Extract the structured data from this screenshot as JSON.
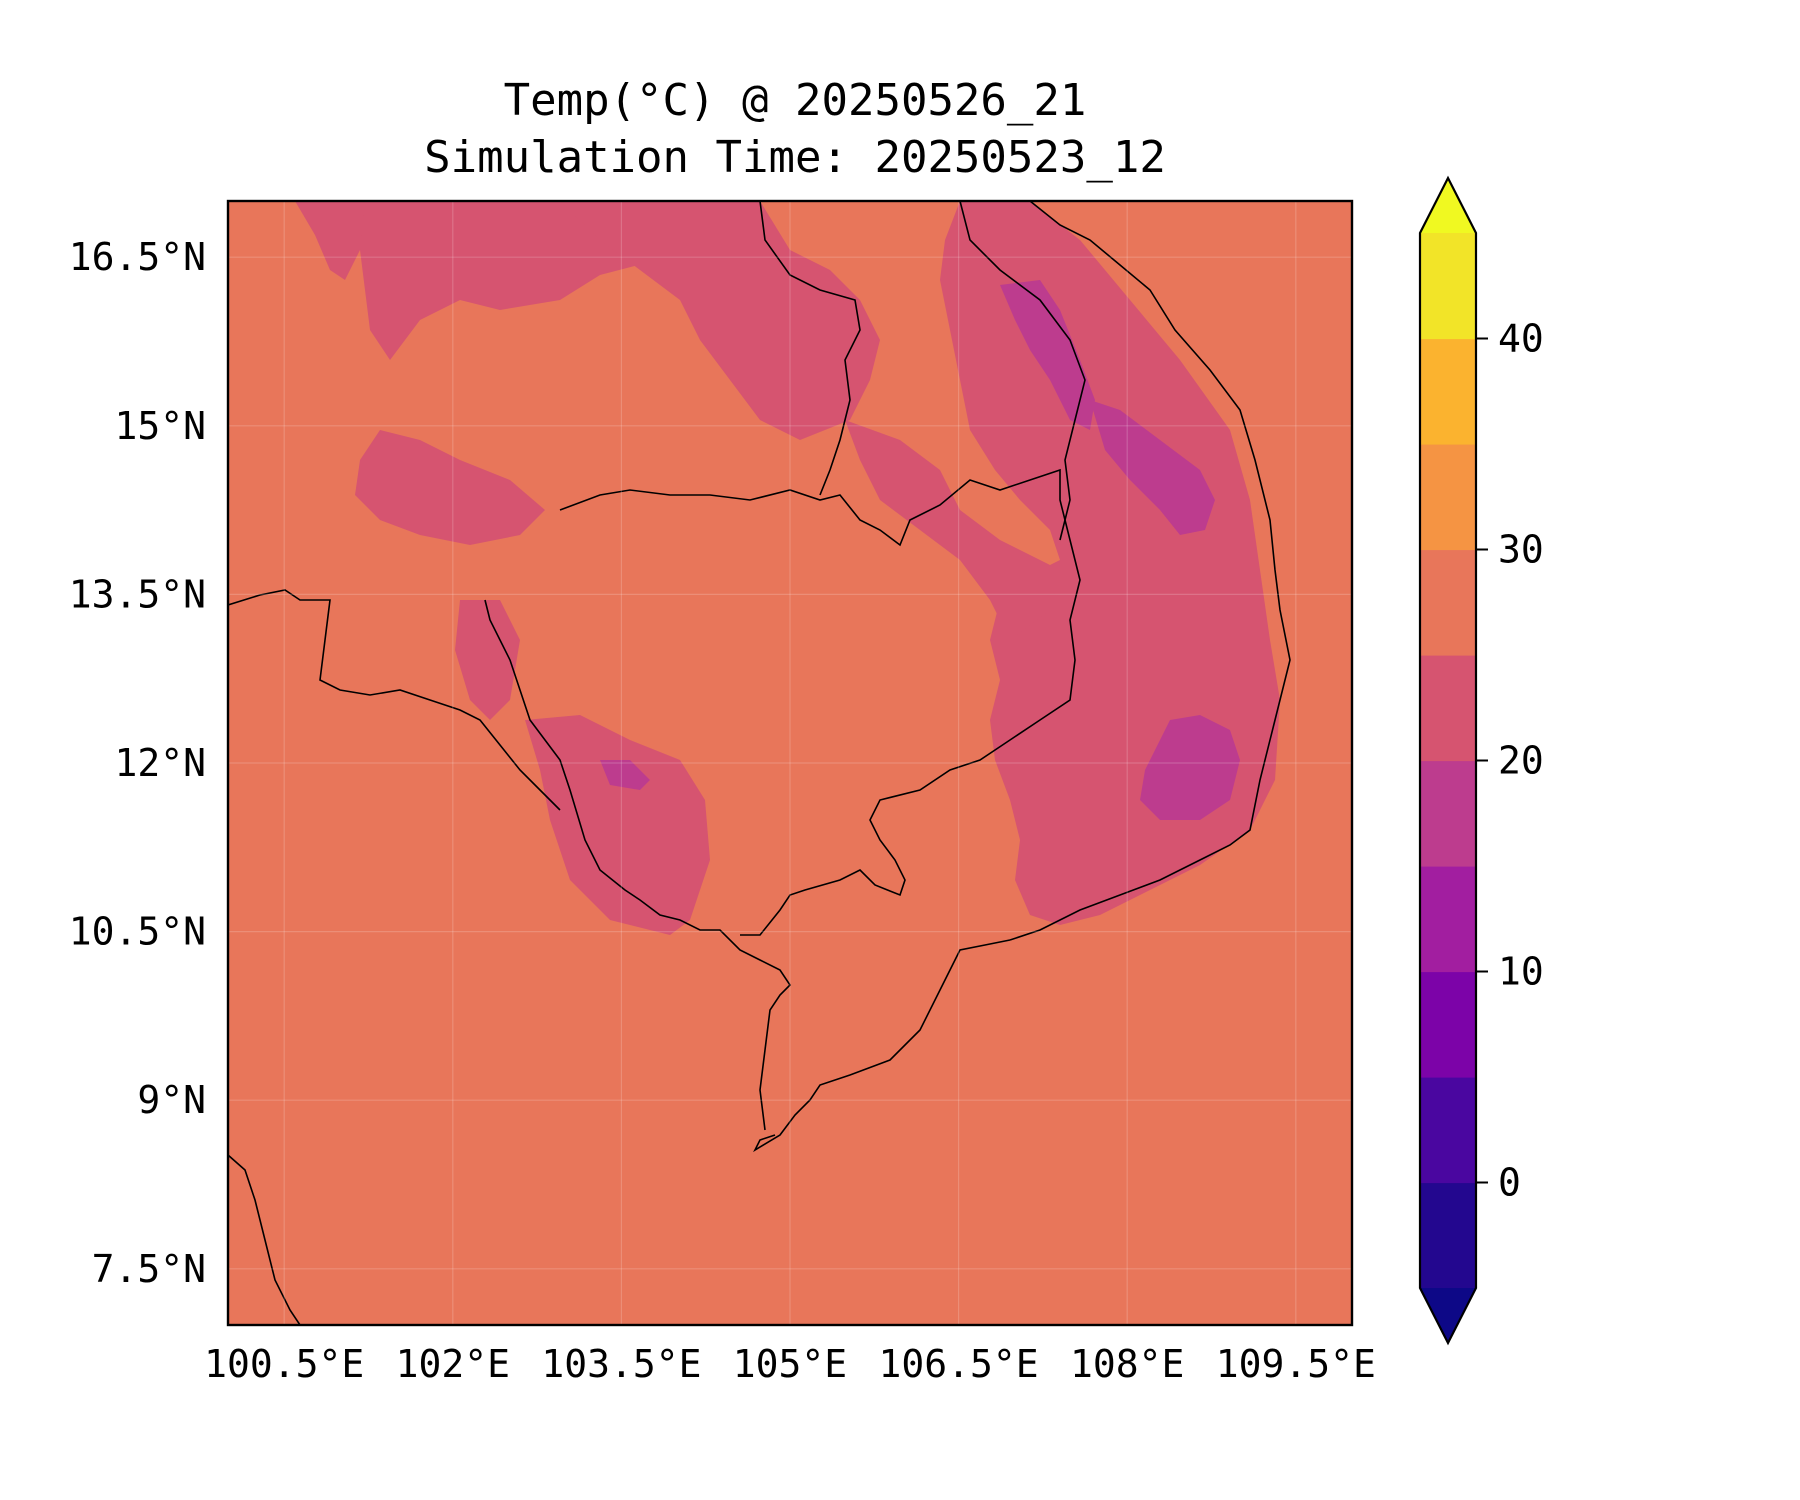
{
  "title": {
    "line1": "Temp(°C) @ 20250526_21",
    "line2": "Simulation Time: 20250523_12"
  },
  "map": {
    "lon_range": [
      100.0,
      110.0
    ],
    "lat_range": [
      7.0,
      17.0
    ],
    "grid": true,
    "x_ticks": [
      {
        "value": 100.5,
        "label": "100.5°E"
      },
      {
        "value": 102.0,
        "label": "102°E"
      },
      {
        "value": 103.5,
        "label": "103.5°E"
      },
      {
        "value": 105.0,
        "label": "105°E"
      },
      {
        "value": 106.5,
        "label": "106.5°E"
      },
      {
        "value": 108.0,
        "label": "108°E"
      },
      {
        "value": 109.5,
        "label": "109.5°E"
      }
    ],
    "y_ticks": [
      {
        "value": 16.5,
        "label": "16.5°N"
      },
      {
        "value": 15.0,
        "label": "15°N"
      },
      {
        "value": 13.5,
        "label": "13.5°N"
      },
      {
        "value": 12.0,
        "label": "12°N"
      },
      {
        "value": 10.5,
        "label": "10.5°N"
      },
      {
        "value": 9.0,
        "label": "9°N"
      },
      {
        "value": 7.5,
        "label": "7.5°N"
      }
    ],
    "background_band_color": "#e8765a",
    "overlay_band_colors": [
      "#d65470",
      "#bd3c8e"
    ]
  },
  "colorbar": {
    "range": [
      -5,
      45
    ],
    "extend": "both",
    "levels": [
      -5,
      0,
      5,
      10,
      15,
      20,
      25,
      30,
      35,
      40,
      45
    ],
    "colors": [
      "#23078f",
      "#4a06a0",
      "#7c03a8",
      "#a21ea0",
      "#bd3c8e",
      "#d65470",
      "#e8765a",
      "#f59443",
      "#fbb32f",
      "#f2e428"
    ],
    "under_color": "#0d0887",
    "over_color": "#f0f921",
    "ticks": [
      {
        "value": 0,
        "label": "0"
      },
      {
        "value": 10,
        "label": "10"
      },
      {
        "value": 20,
        "label": "20"
      },
      {
        "value": 30,
        "label": "30"
      },
      {
        "value": 40,
        "label": "40"
      }
    ]
  }
}
